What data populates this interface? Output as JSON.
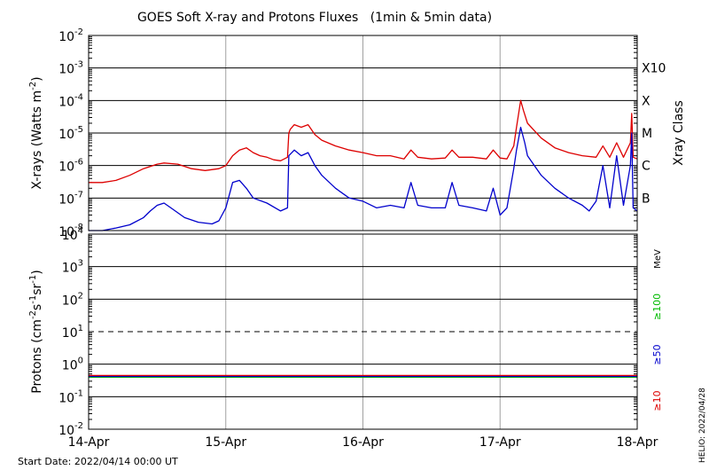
{
  "chart_data": {
    "type": "line",
    "title": "GOES Soft X-ray and Protons Fluxes   (1min & 5min data)",
    "x_ticks": [
      "14-Apr",
      "15-Apr",
      "16-Apr",
      "17-Apr",
      "18-Apr"
    ],
    "xlim_days": [
      0,
      4
    ],
    "start_date_label": "Start Date: 2022/04/14 00:00 UT",
    "stamp": "HELIO: 2022/04/28",
    "colors": {
      "red": "#dd0000",
      "blue": "#0000cc",
      "green": "#00bb00"
    },
    "panels": [
      {
        "id": "xray",
        "ylabel": "X-rays (Watts m-2)",
        "ylabel_parts": [
          "X-rays (Watts m",
          "-2",
          ")"
        ],
        "yscale": "log",
        "ylim": [
          1e-08,
          0.01
        ],
        "y_ticks": [
          {
            "base": "10",
            "exp": "-8"
          },
          {
            "base": "10",
            "exp": "-7"
          },
          {
            "base": "10",
            "exp": "-6"
          },
          {
            "base": "10",
            "exp": "-5"
          },
          {
            "base": "10",
            "exp": "-4"
          },
          {
            "base": "10",
            "exp": "-3"
          },
          {
            "base": "10",
            "exp": "-2"
          }
        ],
        "right_title": "Xray Class",
        "class_labels": [
          {
            "label": "B",
            "value": 1e-07
          },
          {
            "label": "C",
            "value": 1e-06
          },
          {
            "label": "M",
            "value": 1e-05
          },
          {
            "label": "X",
            "value": 0.0001
          },
          {
            "label": "X10",
            "value": 0.001
          }
        ],
        "series": [
          {
            "color": "red",
            "points": [
              [
                0,
                3e-07
              ],
              [
                0.1,
                3e-07
              ],
              [
                0.2,
                3.5e-07
              ],
              [
                0.3,
                5e-07
              ],
              [
                0.4,
                8e-07
              ],
              [
                0.5,
                1.1e-06
              ],
              [
                0.55,
                1.2e-06
              ],
              [
                0.65,
                1.1e-06
              ],
              [
                0.75,
                8e-07
              ],
              [
                0.85,
                7e-07
              ],
              [
                0.95,
                8e-07
              ],
              [
                1.0,
                1e-06
              ],
              [
                1.05,
                2e-06
              ],
              [
                1.1,
                3e-06
              ],
              [
                1.15,
                3.5e-06
              ],
              [
                1.2,
                2.5e-06
              ],
              [
                1.25,
                2e-06
              ],
              [
                1.3,
                1.8e-06
              ],
              [
                1.35,
                1.5e-06
              ],
              [
                1.4,
                1.4e-06
              ],
              [
                1.45,
                1.8e-06
              ],
              [
                1.46,
                1e-05
              ],
              [
                1.47,
                1.3e-05
              ],
              [
                1.5,
                1.8e-05
              ],
              [
                1.55,
                1.5e-05
              ],
              [
                1.6,
                1.8e-05
              ],
              [
                1.65,
                9e-06
              ],
              [
                1.7,
                6e-06
              ],
              [
                1.8,
                4e-06
              ],
              [
                1.9,
                3e-06
              ],
              [
                2.0,
                2.5e-06
              ],
              [
                2.1,
                2e-06
              ],
              [
                2.2,
                2e-06
              ],
              [
                2.3,
                1.6e-06
              ],
              [
                2.35,
                3e-06
              ],
              [
                2.4,
                1.8e-06
              ],
              [
                2.5,
                1.6e-06
              ],
              [
                2.6,
                1.7e-06
              ],
              [
                2.65,
                3e-06
              ],
              [
                2.7,
                1.8e-06
              ],
              [
                2.8,
                1.8e-06
              ],
              [
                2.9,
                1.6e-06
              ],
              [
                2.95,
                3e-06
              ],
              [
                3.0,
                1.7e-06
              ],
              [
                3.05,
                1.6e-06
              ],
              [
                3.1,
                4e-06
              ],
              [
                3.12,
                1.5e-05
              ],
              [
                3.15,
                0.0001
              ],
              [
                3.17,
                5e-05
              ],
              [
                3.2,
                2e-05
              ],
              [
                3.3,
                7e-06
              ],
              [
                3.4,
                3.5e-06
              ],
              [
                3.5,
                2.5e-06
              ],
              [
                3.6,
                2e-06
              ],
              [
                3.7,
                1.8e-06
              ],
              [
                3.75,
                4e-06
              ],
              [
                3.8,
                1.8e-06
              ],
              [
                3.85,
                5e-06
              ],
              [
                3.9,
                1.8e-06
              ],
              [
                3.95,
                5e-06
              ],
              [
                3.96,
                4e-05
              ],
              [
                3.97,
                1.8e-06
              ],
              [
                4.0,
                1.6e-06
              ]
            ]
          },
          {
            "color": "blue",
            "points": [
              [
                0,
                1e-08
              ],
              [
                0.1,
                1e-08
              ],
              [
                0.2,
                1.2e-08
              ],
              [
                0.3,
                1.5e-08
              ],
              [
                0.4,
                2.5e-08
              ],
              [
                0.45,
                4e-08
              ],
              [
                0.5,
                6e-08
              ],
              [
                0.55,
                7e-08
              ],
              [
                0.6,
                5e-08
              ],
              [
                0.7,
                2.5e-08
              ],
              [
                0.8,
                1.8e-08
              ],
              [
                0.9,
                1.6e-08
              ],
              [
                0.95,
                2e-08
              ],
              [
                1.0,
                5e-08
              ],
              [
                1.05,
                3e-07
              ],
              [
                1.1,
                3.5e-07
              ],
              [
                1.15,
                2e-07
              ],
              [
                1.2,
                1e-07
              ],
              [
                1.3,
                7e-08
              ],
              [
                1.4,
                4e-08
              ],
              [
                1.45,
                5e-08
              ],
              [
                1.46,
                2e-06
              ],
              [
                1.5,
                3e-06
              ],
              [
                1.55,
                2e-06
              ],
              [
                1.6,
                2.5e-06
              ],
              [
                1.65,
                1e-06
              ],
              [
                1.7,
                5e-07
              ],
              [
                1.8,
                2e-07
              ],
              [
                1.9,
                1e-07
              ],
              [
                2.0,
                8e-08
              ],
              [
                2.1,
                5e-08
              ],
              [
                2.2,
                6e-08
              ],
              [
                2.3,
                5e-08
              ],
              [
                2.35,
                3e-07
              ],
              [
                2.4,
                6e-08
              ],
              [
                2.5,
                5e-08
              ],
              [
                2.6,
                5e-08
              ],
              [
                2.65,
                3e-07
              ],
              [
                2.7,
                6e-08
              ],
              [
                2.8,
                5e-08
              ],
              [
                2.9,
                4e-08
              ],
              [
                2.95,
                2e-07
              ],
              [
                3.0,
                3e-08
              ],
              [
                3.05,
                5e-08
              ],
              [
                3.1,
                8e-07
              ],
              [
                3.12,
                3e-06
              ],
              [
                3.15,
                1.5e-05
              ],
              [
                3.18,
                5e-06
              ],
              [
                3.2,
                2e-06
              ],
              [
                3.3,
                5e-07
              ],
              [
                3.4,
                2e-07
              ],
              [
                3.5,
                1e-07
              ],
              [
                3.6,
                6e-08
              ],
              [
                3.65,
                4e-08
              ],
              [
                3.7,
                8e-08
              ],
              [
                3.75,
                1e-06
              ],
              [
                3.8,
                5e-08
              ],
              [
                3.85,
                2e-06
              ],
              [
                3.9,
                6e-08
              ],
              [
                3.95,
                1e-06
              ],
              [
                3.96,
                1e-05
              ],
              [
                3.97,
                5e-08
              ],
              [
                4.0,
                4e-08
              ]
            ]
          }
        ]
      },
      {
        "id": "protons",
        "ylabel": "Protons (cm-2 s-1 sr-1)",
        "ylabel_parts": [
          "Protons (cm",
          "-2",
          "s",
          "-1",
          "sr",
          "-1",
          ")"
        ],
        "yscale": "log",
        "ylim": [
          0.01,
          10000
        ],
        "y_ticks": [
          {
            "base": "10",
            "exp": "-2"
          },
          {
            "base": "10",
            "exp": "-1"
          },
          {
            "base": "10",
            "exp": "0"
          },
          {
            "base": "10",
            "exp": "1"
          },
          {
            "base": "10",
            "exp": "2"
          },
          {
            "base": "10",
            "exp": "3"
          },
          {
            "base": "10",
            "exp": "4"
          }
        ],
        "threshold": 10,
        "unit_label": "MeV",
        "energy_labels": [
          {
            "label": "≥100",
            "color": "green"
          },
          {
            "label": "≥50",
            "color": "blue"
          },
          {
            "label": "≥10",
            "color": "red"
          }
        ],
        "series": [
          {
            "color": "green",
            "points": [
              [
                0,
                0.4
              ],
              [
                1,
                0.4
              ],
              [
                2,
                0.4
              ],
              [
                3,
                0.4
              ],
              [
                4,
                0.4
              ]
            ]
          },
          {
            "color": "blue",
            "points": [
              [
                0,
                0.42
              ],
              [
                1,
                0.42
              ],
              [
                2,
                0.42
              ],
              [
                3,
                0.42
              ],
              [
                4,
                0.42
              ]
            ]
          },
          {
            "color": "red",
            "points": [
              [
                0,
                0.45
              ],
              [
                1,
                0.45
              ],
              [
                2,
                0.45
              ],
              [
                3,
                0.45
              ],
              [
                4,
                0.45
              ]
            ]
          }
        ]
      }
    ]
  }
}
